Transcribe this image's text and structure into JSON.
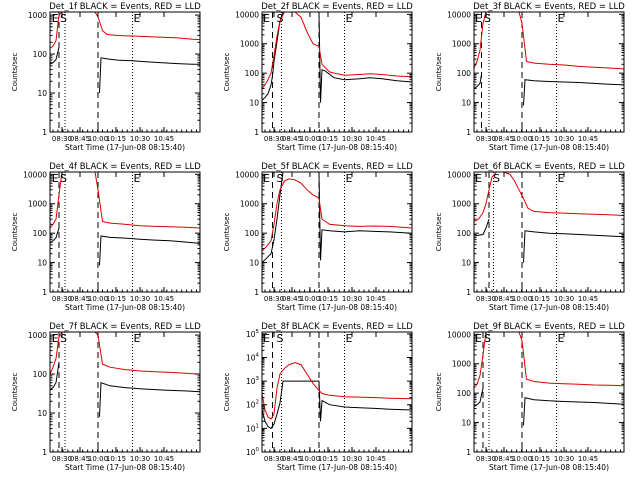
{
  "figure": {
    "colors": {
      "events": "#000000",
      "lld": "#e00000",
      "axes": "#000000",
      "background": "#ffffff"
    },
    "xlabel": "Start Time (17-Jun-08 08:15:40)",
    "ylabel": "Counts/sec",
    "xticks": [
      "08:30",
      "08:45",
      "10:00",
      "10:15",
      "10:30",
      "10:45"
    ]
  },
  "chart_data": [
    {
      "type": "line",
      "title": "Det_1f BLACK = Events, RED = LLD",
      "xlabel": "Start Time (17-Jun-08 08:15:40)",
      "ylabel": "Counts/sec",
      "yscale": "log",
      "yticks": [
        "1",
        "10",
        "100",
        "1000"
      ],
      "ylim": [
        1,
        1200
      ],
      "letters": [
        {
          "text": "E",
          "x": 0.005
        },
        {
          "text": "S",
          "x": 0.06
        },
        {
          "text": "E",
          "x": 0.55
        }
      ],
      "dashed_lines": [
        0.06,
        0.32
      ],
      "dotted_lines": [
        0.1,
        0.55
      ],
      "series": [
        {
          "name": "Events",
          "color": "#000000",
          "x": [
            0.0,
            0.02,
            0.04,
            0.06,
            0.06,
            0.32,
            0.33,
            0.34,
            0.38,
            0.45,
            0.55,
            0.65,
            0.75,
            0.85,
            0.95,
            1.0
          ],
          "values": [
            55,
            60,
            72,
            150,
            null,
            null,
            10,
            80,
            75,
            70,
            67,
            63,
            60,
            57,
            55,
            55
          ]
        },
        {
          "name": "LLD",
          "color": "#e00000",
          "x": [
            0.0,
            0.02,
            0.04,
            0.06,
            0.08,
            0.3,
            0.32,
            0.35,
            0.38,
            0.45,
            0.55,
            0.65,
            0.75,
            0.85,
            0.95,
            1.0
          ],
          "values": [
            140,
            160,
            220,
            1000,
            1200,
            1200,
            900,
            400,
            320,
            300,
            290,
            280,
            270,
            260,
            240,
            235
          ]
        }
      ]
    },
    {
      "type": "line",
      "title": "Det_2f BLACK = Events, RED = LLD",
      "xlabel": "Start Time (17-Jun-08 08:15:40)",
      "ylabel": "Counts/sec",
      "yscale": "log",
      "yticks": [
        "1",
        "10",
        "100",
        "1000",
        "10000"
      ],
      "ylim": [
        1,
        12000
      ],
      "letters": [
        {
          "text": "E",
          "x": 0.0
        },
        {
          "text": "S",
          "x": 0.09
        },
        {
          "text": "E",
          "x": 0.55
        }
      ],
      "dashed_lines": [
        0.07,
        0.38
      ],
      "dotted_lines": [
        0.13,
        0.55
      ],
      "series": [
        {
          "name": "Events",
          "color": "#000000",
          "x": [
            0.0,
            0.02,
            0.04,
            0.06,
            0.07,
            0.08,
            0.1,
            0.12,
            0.14,
            0.38,
            0.39,
            0.4,
            0.42,
            0.48,
            0.55,
            0.65,
            0.72,
            0.8,
            0.9,
            1.0
          ],
          "values": [
            12,
            15,
            20,
            40,
            80,
            250,
            1200,
            6000,
            12000,
            12000,
            10,
            130,
            120,
            70,
            60,
            65,
            70,
            65,
            55,
            50
          ]
        },
        {
          "name": "LLD",
          "color": "#e00000",
          "x": [
            0.0,
            0.02,
            0.04,
            0.06,
            0.08,
            0.1,
            0.12,
            0.15,
            0.18,
            0.22,
            0.26,
            0.3,
            0.34,
            0.36,
            0.38,
            0.4,
            0.45,
            0.5,
            0.55,
            0.65,
            0.72,
            0.8,
            0.9,
            1.0
          ],
          "values": [
            30,
            40,
            60,
            100,
            400,
            1800,
            6000,
            12000,
            12000,
            12000,
            8000,
            2500,
            1000,
            900,
            800,
            200,
            110,
            95,
            85,
            90,
            95,
            90,
            80,
            75
          ]
        }
      ]
    },
    {
      "type": "line",
      "title": "Det_3f BLACK = Events, RED = LLD",
      "xlabel": "Start Time (17-Jun-08 08:15:40)",
      "ylabel": "Counts/sec",
      "yscale": "log",
      "yticks": [
        "1",
        "10",
        "100",
        "1000",
        "10000"
      ],
      "ylim": [
        1,
        12000
      ],
      "letters": [
        {
          "text": "E",
          "x": 0.0
        },
        {
          "text": "S",
          "x": 0.06
        },
        {
          "text": "E",
          "x": 0.55
        }
      ],
      "dashed_lines": [
        0.05,
        0.32
      ],
      "dotted_lines": [
        0.1,
        0.55
      ],
      "series": [
        {
          "name": "Events",
          "color": "#000000",
          "x": [
            0.0,
            0.02,
            0.04,
            0.05,
            0.06,
            0.32,
            0.33,
            0.34,
            0.4,
            0.5,
            0.6,
            0.7,
            0.8,
            0.9,
            1.0
          ],
          "values": [
            30,
            35,
            45,
            90,
            null,
            null,
            8,
            60,
            55,
            52,
            50,
            48,
            45,
            42,
            40
          ]
        },
        {
          "name": "LLD",
          "color": "#e00000",
          "x": [
            0.0,
            0.02,
            0.04,
            0.06,
            0.08,
            0.3,
            0.32,
            0.35,
            0.4,
            0.5,
            0.6,
            0.7,
            0.8,
            0.9,
            1.0
          ],
          "values": [
            150,
            250,
            600,
            5000,
            12000,
            12000,
            5000,
            250,
            220,
            200,
            190,
            170,
            160,
            150,
            140
          ]
        }
      ]
    },
    {
      "type": "line",
      "title": "Det_4f BLACK = Events, RED = LLD",
      "xlabel": "Start Time (17-Jun-08 08:15:40)",
      "ylabel": "Counts/sec",
      "yscale": "log",
      "yticks": [
        "1",
        "10",
        "100",
        "1000",
        "10000"
      ],
      "ylim": [
        1,
        12000
      ],
      "letters": [
        {
          "text": "E",
          "x": 0.005
        },
        {
          "text": "S",
          "x": 0.06
        },
        {
          "text": "E",
          "x": 0.55
        }
      ],
      "dashed_lines": [
        0.06,
        0.32
      ],
      "dotted_lines": [
        0.1,
        0.55
      ],
      "series": [
        {
          "name": "Events",
          "color": "#000000",
          "x": [
            0.0,
            0.02,
            0.04,
            0.06,
            0.06,
            0.32,
            0.33,
            0.34,
            0.4,
            0.5,
            0.6,
            0.7,
            0.8,
            0.9,
            1.0
          ],
          "values": [
            45,
            55,
            70,
            150,
            null,
            null,
            8,
            80,
            72,
            68,
            62,
            58,
            55,
            50,
            45
          ]
        },
        {
          "name": "LLD",
          "color": "#e00000",
          "x": [
            0.0,
            0.02,
            0.04,
            0.06,
            0.08,
            0.3,
            0.32,
            0.35,
            0.4,
            0.5,
            0.6,
            0.7,
            0.8,
            0.9,
            1.0
          ],
          "values": [
            150,
            200,
            300,
            2000,
            12000,
            12000,
            3000,
            250,
            220,
            200,
            180,
            170,
            165,
            160,
            150
          ]
        }
      ]
    },
    {
      "type": "line",
      "title": "Det_5f BLACK = Events, RED = LLD",
      "xlabel": "Start Time (17-Jun-08 08:15:40)",
      "ylabel": "Counts/sec",
      "yscale": "log",
      "yticks": [
        "1",
        "10",
        "100",
        "1000",
        "10000"
      ],
      "ylim": [
        1,
        12000
      ],
      "letters": [
        {
          "text": "E",
          "x": 0.0
        },
        {
          "text": "S",
          "x": 0.09
        },
        {
          "text": "E",
          "x": 0.55
        }
      ],
      "dashed_lines": [
        0.07,
        0.38
      ],
      "dotted_lines": [
        0.13,
        0.55
      ],
      "series": [
        {
          "name": "Events",
          "color": "#000000",
          "x": [
            0.0,
            0.03,
            0.06,
            0.08,
            0.1,
            0.12,
            0.14,
            0.38,
            0.39,
            0.4,
            0.45,
            0.55,
            0.65,
            0.75,
            0.85,
            1.0
          ],
          "values": [
            10,
            14,
            20,
            60,
            300,
            2000,
            12000,
            12000,
            12,
            130,
            120,
            110,
            120,
            115,
            110,
            100
          ]
        },
        {
          "name": "LLD",
          "color": "#e00000",
          "x": [
            0.0,
            0.03,
            0.06,
            0.08,
            0.1,
            0.12,
            0.15,
            0.18,
            0.22,
            0.26,
            0.3,
            0.34,
            0.36,
            0.38,
            0.4,
            0.45,
            0.55,
            0.65,
            0.75,
            0.85,
            1.0
          ],
          "values": [
            25,
            35,
            55,
            200,
            1000,
            3000,
            6000,
            7000,
            6500,
            5000,
            3000,
            2000,
            1800,
            1500,
            300,
            200,
            180,
            170,
            175,
            170,
            150
          ]
        }
      ]
    },
    {
      "type": "line",
      "title": "Det_6f BLACK = Events, RED = LLD",
      "xlabel": "Start Time (17-Jun-08 08:15:40)",
      "ylabel": "Counts/sec",
      "yscale": "log",
      "yticks": [
        "1",
        "10",
        "100",
        "1000",
        "10000"
      ],
      "ylim": [
        1,
        12000
      ],
      "letters": [
        {
          "text": "E",
          "x": 0.0
        },
        {
          "text": "S",
          "x": 0.12
        },
        {
          "text": "E",
          "x": 0.55
        }
      ],
      "dashed_lines": [
        0.1,
        0.32
      ],
      "dotted_lines": [
        0.13,
        0.55
      ],
      "series": [
        {
          "name": "Events",
          "color": "#000000",
          "x": [
            0.0,
            0.03,
            0.06,
            0.08,
            0.1,
            0.32,
            0.33,
            0.34,
            0.4,
            0.5,
            0.6,
            0.7,
            0.8,
            0.9,
            1.0
          ],
          "values": [
            80,
            85,
            90,
            150,
            300,
            null,
            10,
            120,
            110,
            100,
            95,
            90,
            85,
            80,
            75
          ]
        },
        {
          "name": "LLD",
          "color": "#e00000",
          "x": [
            0.0,
            0.03,
            0.06,
            0.08,
            0.1,
            0.12,
            0.15,
            0.2,
            0.24,
            0.27,
            0.3,
            0.33,
            0.36,
            0.4,
            0.5,
            0.6,
            0.7,
            0.8,
            0.9,
            1.0
          ],
          "values": [
            250,
            300,
            500,
            1000,
            3000,
            8000,
            12000,
            12000,
            10000,
            6000,
            3000,
            1500,
            700,
            550,
            500,
            480,
            460,
            440,
            420,
            400
          ]
        }
      ]
    },
    {
      "type": "line",
      "title": "Det_7f BLACK = Events, RED = LLD",
      "xlabel": "Start Time (17-Jun-08 08:15:40)",
      "ylabel": "Counts/sec",
      "yscale": "log",
      "yticks": [
        "1",
        "10",
        "100",
        "1000"
      ],
      "ylim": [
        1,
        1200
      ],
      "letters": [
        {
          "text": "E",
          "x": 0.005
        },
        {
          "text": "S",
          "x": 0.06
        },
        {
          "text": "E",
          "x": 0.55
        }
      ],
      "dashed_lines": [
        0.06,
        0.32
      ],
      "dotted_lines": [
        0.1,
        0.55
      ],
      "series": [
        {
          "name": "Events",
          "color": "#000000",
          "x": [
            0.0,
            0.02,
            0.04,
            0.06,
            0.06,
            0.32,
            0.33,
            0.34,
            0.4,
            0.5,
            0.6,
            0.7,
            0.8,
            0.9,
            1.0
          ],
          "values": [
            40,
            45,
            60,
            200,
            null,
            null,
            8,
            60,
            50,
            45,
            42,
            40,
            38,
            37,
            35
          ]
        },
        {
          "name": "LLD",
          "color": "#e00000",
          "x": [
            0.0,
            0.02,
            0.04,
            0.06,
            0.08,
            0.3,
            0.32,
            0.35,
            0.4,
            0.5,
            0.6,
            0.7,
            0.8,
            0.9,
            1.0
          ],
          "values": [
            100,
            150,
            250,
            900,
            1200,
            1200,
            1000,
            180,
            150,
            130,
            120,
            115,
            110,
            105,
            100
          ]
        }
      ]
    },
    {
      "type": "line",
      "title": "Det_8f BLACK = Events, RED = LLD",
      "xlabel": "Start Time (17-Jun-08 08:15:40)",
      "ylabel": "Counts/sec",
      "yscale": "log",
      "yticks": [
        "10^0",
        "10^1",
        "10^2",
        "10^3",
        "10^4",
        "10^5"
      ],
      "ylim": [
        1,
        120000
      ],
      "letters": [
        {
          "text": "E",
          "x": 0.0
        },
        {
          "text": "S",
          "x": 0.09
        },
        {
          "text": "E",
          "x": 0.55
        }
      ],
      "dashed_lines": [
        0.07,
        0.38
      ],
      "dotted_lines": [
        0.13,
        0.55
      ],
      "series": [
        {
          "name": "Events",
          "color": "#000000",
          "x": [
            0.0,
            0.02,
            0.04,
            0.06,
            0.08,
            0.1,
            0.12,
            0.14,
            0.38,
            0.39,
            0.4,
            0.45,
            0.55,
            0.65,
            0.75,
            0.85,
            1.0
          ],
          "values": [
            60,
            20,
            12,
            10,
            15,
            40,
            120,
            1000,
            1000,
            20,
            150,
            100,
            80,
            75,
            70,
            65,
            60
          ]
        },
        {
          "name": "LLD",
          "color": "#e00000",
          "x": [
            0.0,
            0.02,
            0.04,
            0.06,
            0.08,
            0.1,
            0.12,
            0.15,
            0.18,
            0.22,
            0.26,
            0.3,
            0.34,
            0.38,
            0.4,
            0.45,
            0.55,
            0.65,
            0.75,
            0.85,
            1.0
          ],
          "values": [
            300,
            60,
            30,
            25,
            40,
            500,
            2000,
            3500,
            5000,
            6000,
            5000,
            2000,
            800,
            400,
            300,
            250,
            220,
            210,
            200,
            190,
            180
          ]
        }
      ]
    },
    {
      "type": "line",
      "title": "Det_9f BLACK = Events, RED = LLD",
      "xlabel": "Start Time (17-Jun-08 08:15:40)",
      "ylabel": "Counts/sec",
      "yscale": "log",
      "yticks": [
        "1",
        "10",
        "100",
        "1000",
        "10000"
      ],
      "ylim": [
        1,
        12000
      ],
      "letters": [
        {
          "text": "E",
          "x": 0.0
        },
        {
          "text": "S",
          "x": 0.06
        },
        {
          "text": "E",
          "x": 0.55
        }
      ],
      "dashed_lines": [
        0.06,
        0.32
      ],
      "dotted_lines": [
        0.1,
        0.55
      ],
      "series": [
        {
          "name": "Events",
          "color": "#000000",
          "x": [
            0.0,
            0.02,
            0.04,
            0.06,
            0.06,
            0.32,
            0.33,
            0.34,
            0.4,
            0.5,
            0.6,
            0.7,
            0.8,
            0.9,
            1.0
          ],
          "values": [
            35,
            40,
            50,
            150,
            null,
            null,
            8,
            70,
            60,
            55,
            52,
            50,
            48,
            45,
            42
          ]
        },
        {
          "name": "LLD",
          "color": "#e00000",
          "x": [
            0.0,
            0.02,
            0.04,
            0.06,
            0.08,
            0.3,
            0.32,
            0.35,
            0.4,
            0.5,
            0.6,
            0.7,
            0.8,
            0.9,
            1.0
          ],
          "values": [
            150,
            200,
            400,
            2000,
            12000,
            12000,
            6000,
            300,
            250,
            220,
            210,
            200,
            190,
            185,
            180
          ]
        }
      ]
    }
  ]
}
